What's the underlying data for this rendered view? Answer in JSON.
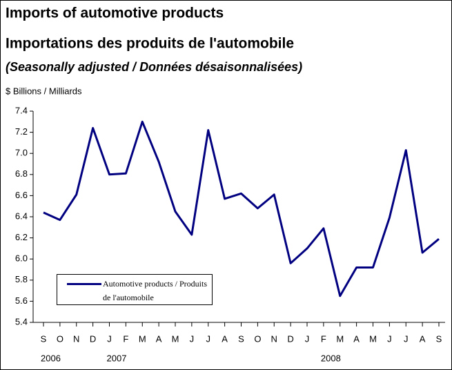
{
  "chart_data": {
    "type": "line",
    "title": "Imports of automotive products",
    "subtitle": "Importations des produits de l'automobile",
    "note": "(Seasonally adjusted / Données désaisonnalisées)",
    "y_label": "$ Billions / Milliards",
    "categories": [
      "S",
      "O",
      "N",
      "D",
      "J",
      "F",
      "M",
      "A",
      "M",
      "J",
      "J",
      "A",
      "S",
      "O",
      "N",
      "D",
      "J",
      "F",
      "M",
      "A",
      "M",
      "J",
      "J",
      "A",
      "S"
    ],
    "year_labels": [
      "2006",
      null,
      null,
      null,
      "2007",
      null,
      null,
      null,
      null,
      null,
      null,
      null,
      null,
      null,
      null,
      null,
      null,
      "2008",
      null,
      null,
      null,
      null,
      null,
      null,
      null
    ],
    "series": [
      {
        "name": "Automotive products / Produits de l'automobile",
        "color": "#000080",
        "values": [
          6.44,
          6.37,
          6.61,
          7.24,
          6.8,
          6.81,
          7.3,
          6.92,
          6.45,
          6.23,
          7.22,
          6.57,
          6.62,
          6.48,
          6.61,
          5.96,
          6.1,
          6.29,
          5.65,
          5.92,
          5.92,
          6.39,
          7.03,
          6.06,
          6.19
        ]
      }
    ],
    "ylim": [
      5.4,
      7.4
    ],
    "yticks": [
      5.4,
      5.6,
      5.8,
      {
        "value": 6,
        "label": "6.0"
      },
      6.2,
      6.4,
      6.6,
      6.8,
      {
        "value": 7,
        "label": "7.0"
      },
      7.2,
      7.4
    ],
    "grid": false,
    "legend": "bottom-left"
  }
}
